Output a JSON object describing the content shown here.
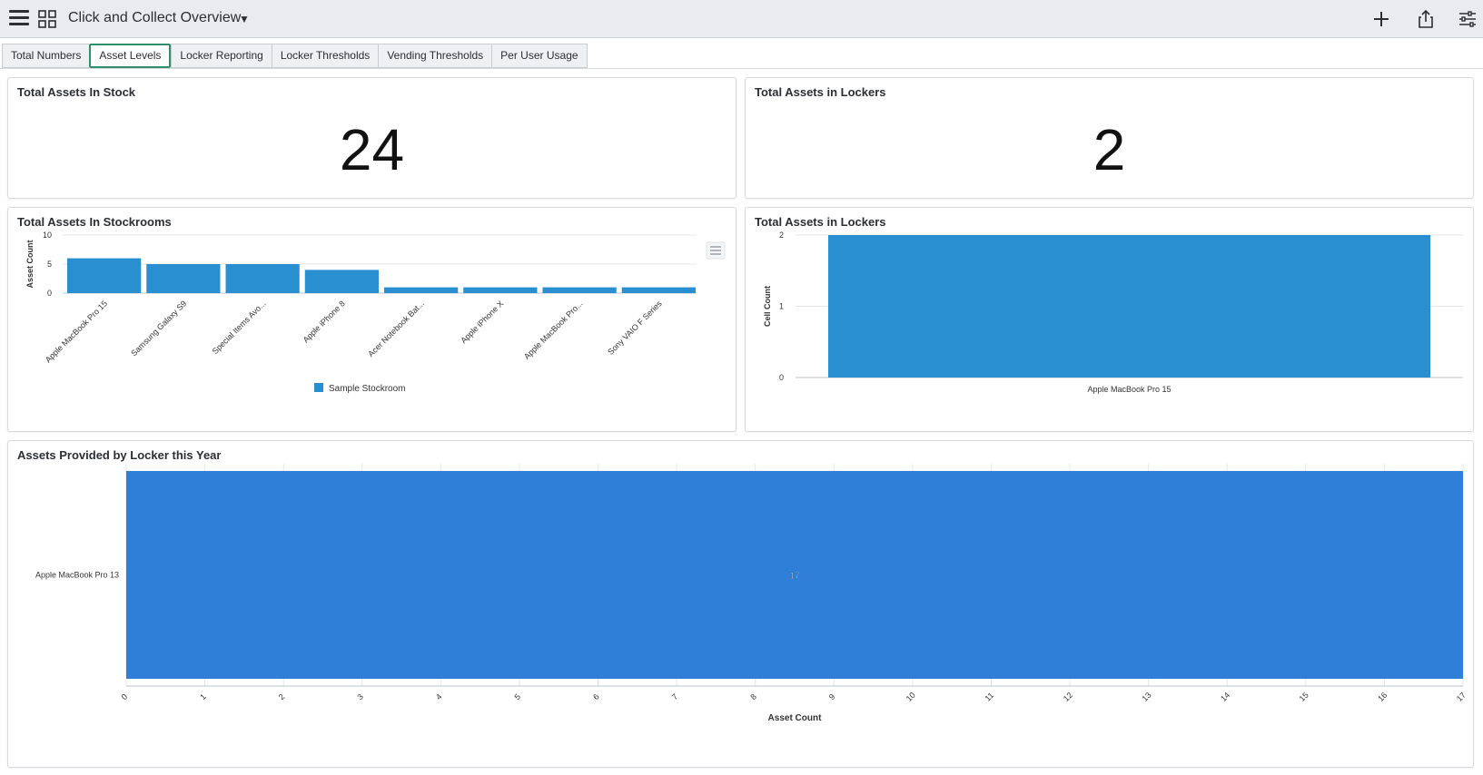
{
  "header": {
    "title": "Click and Collect Overview",
    "menu_icon": "hamburger-menu-icon",
    "grid_icon": "dashboard-grid-icon",
    "actions": [
      "add-icon",
      "share-icon",
      "filter-settings-icon"
    ]
  },
  "tabs": [
    {
      "label": "Total Numbers",
      "active": false
    },
    {
      "label": "Asset Levels",
      "active": true
    },
    {
      "label": "Locker Reporting",
      "active": false
    },
    {
      "label": "Locker Thresholds",
      "active": false
    },
    {
      "label": "Vending Thresholds",
      "active": false
    },
    {
      "label": "Per User Usage",
      "active": false
    }
  ],
  "widgets": {
    "stock": {
      "title": "Total Assets In Stock",
      "value": "24"
    },
    "lockers": {
      "title": "Total Assets in Lockers",
      "value": "2"
    },
    "stockrooms_title": "Total Assets In Stockrooms",
    "lockers_chart_title": "Total Assets in Lockers",
    "provided_title": "Assets Provided by Locker this Year"
  },
  "colors": {
    "bar_blue": "#2a8fd0",
    "bar_blue_dark": "#2f7ed8",
    "active_tab": "#2f8f6b"
  },
  "chart_data": [
    {
      "id": "stockrooms",
      "type": "bar",
      "title": "Total Assets In Stockrooms",
      "ylabel": "Asset Count",
      "xlabel": "",
      "ylim": [
        0,
        10
      ],
      "yticks": [
        0,
        5,
        10
      ],
      "categories": [
        "Apple MacBook Pro 15",
        "Samsung Galaxy S9",
        "Special Items Avo...",
        "Apple iPhone 8",
        "Acer Notebook Bat...",
        "Apple iPhone X",
        "Apple MacBook Pro...",
        "Sony VAIO F Series"
      ],
      "series": [
        {
          "name": "Sample Stockroom",
          "values": [
            6,
            5,
            5,
            4,
            1,
            1,
            1,
            1
          ]
        }
      ],
      "legend": "bottom"
    },
    {
      "id": "lockers",
      "type": "bar",
      "title": "Total Assets in Lockers",
      "ylabel": "Cell Count",
      "xlabel": "",
      "ylim": [
        0,
        2
      ],
      "yticks": [
        0,
        1,
        2
      ],
      "categories": [
        "Apple MacBook Pro 15"
      ],
      "series": [
        {
          "name": "Cell Count",
          "values": [
            2
          ]
        }
      ]
    },
    {
      "id": "provided",
      "type": "bar",
      "orientation": "horizontal",
      "title": "Assets Provided by Locker this Year",
      "xlabel": "Asset Count",
      "ylabel": "",
      "xlim": [
        0,
        17
      ],
      "xticks": [
        0,
        1,
        2,
        3,
        4,
        5,
        6,
        7,
        8,
        9,
        10,
        11,
        12,
        13,
        14,
        15,
        16,
        17
      ],
      "categories": [
        "Apple MacBook Pro 13"
      ],
      "series": [
        {
          "name": "Asset Count",
          "values": [
            17
          ]
        }
      ],
      "data_labels": [
        "17"
      ]
    }
  ]
}
